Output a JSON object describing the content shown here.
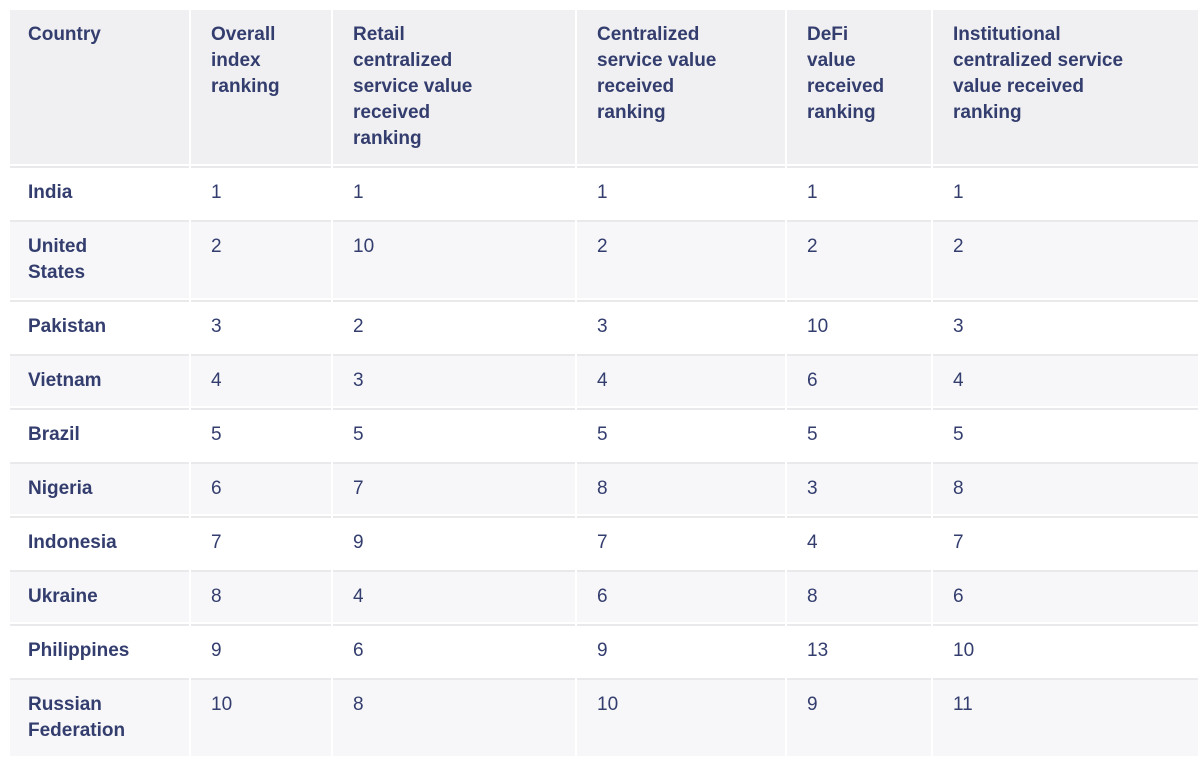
{
  "colors": {
    "text": "#333d6e",
    "header_bg": "#f0f0f2",
    "row_bg": "#ffffff",
    "row_alt_bg": "#f7f7f9",
    "divider": "#e9e9ec",
    "page_bg": "#ffffff"
  },
  "table": {
    "headers": [
      {
        "id": "country",
        "label": "Country"
      },
      {
        "id": "overall",
        "label": "Overall\nindex\nranking"
      },
      {
        "id": "retail",
        "label": "Retail\ncentralized\nservice value\nreceived\nranking"
      },
      {
        "id": "centralized",
        "label": "Centralized\nservice value\nreceived\nranking"
      },
      {
        "id": "defi",
        "label": "DeFi\nvalue\nreceived\nranking"
      },
      {
        "id": "institutional",
        "label": "Institutional\ncentralized service\nvalue received\nranking"
      }
    ],
    "rows": [
      {
        "country": "India",
        "values": [
          "1",
          "1",
          "1",
          "1",
          "1"
        ]
      },
      {
        "country": "United\nStates",
        "values": [
          "2",
          "10",
          "2",
          "2",
          "2"
        ]
      },
      {
        "country": "Pakistan",
        "values": [
          "3",
          "2",
          "3",
          "10",
          "3"
        ]
      },
      {
        "country": "Vietnam",
        "values": [
          "4",
          "3",
          "4",
          "6",
          "4"
        ]
      },
      {
        "country": "Brazil",
        "values": [
          "5",
          "5",
          "5",
          "5",
          "5"
        ]
      },
      {
        "country": "Nigeria",
        "values": [
          "6",
          "7",
          "8",
          "3",
          "8"
        ]
      },
      {
        "country": "Indonesia",
        "values": [
          "7",
          "9",
          "7",
          "4",
          "7"
        ]
      },
      {
        "country": "Ukraine",
        "values": [
          "8",
          "4",
          "6",
          "8",
          "6"
        ]
      },
      {
        "country": "Philippines",
        "values": [
          "9",
          "6",
          "9",
          "13",
          "10"
        ]
      },
      {
        "country": "Russian\nFederation",
        "values": [
          "10",
          "8",
          "10",
          "9",
          "11"
        ]
      }
    ]
  },
  "chart_data": {
    "type": "table",
    "columns": [
      "Country",
      "Overall index ranking",
      "Retail centralized service value received ranking",
      "Centralized service value received ranking",
      "DeFi value received ranking",
      "Institutional centralized service value received ranking"
    ],
    "rows": [
      [
        "India",
        1,
        1,
        1,
        1,
        1
      ],
      [
        "United States",
        2,
        10,
        2,
        2,
        2
      ],
      [
        "Pakistan",
        3,
        2,
        3,
        10,
        3
      ],
      [
        "Vietnam",
        4,
        3,
        4,
        6,
        4
      ],
      [
        "Brazil",
        5,
        5,
        5,
        5,
        5
      ],
      [
        "Nigeria",
        6,
        7,
        8,
        3,
        8
      ],
      [
        "Indonesia",
        7,
        9,
        7,
        4,
        7
      ],
      [
        "Ukraine",
        8,
        4,
        6,
        8,
        6
      ],
      [
        "Philippines",
        9,
        6,
        9,
        13,
        10
      ],
      [
        "Russian Federation",
        10,
        8,
        10,
        9,
        11
      ]
    ]
  }
}
